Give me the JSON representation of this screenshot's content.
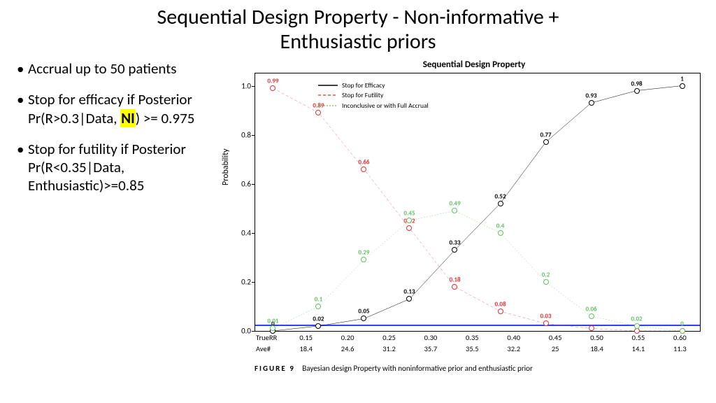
{
  "title_line1": "Sequential Design Property - Non-informative +",
  "title_line2": "Enthusiastic priors",
  "bullets": {
    "b1": "Accrual up to 50 patients",
    "b2a": "Stop for efficacy if Posterior Pr(R>0.3|Data, ",
    "b2_hl": "NI",
    "b2b": ") >= 0.975",
    "b3": "Stop for futility if Posterior Pr(R<0.35|Data, Enthusiastic)>=0.85"
  },
  "chart": {
    "title": "Sequential Design Property",
    "ylabel": "Probability",
    "ylim": [
      0,
      1.05
    ],
    "yticks": [
      0.0,
      0.2,
      0.4,
      0.6,
      0.8,
      1.0
    ],
    "ytick_labels": [
      "0.0",
      "0.2",
      "0.4",
      "0.6",
      "0.8",
      "1.0"
    ],
    "x_categories": [
      "0.15",
      "0.20",
      "0.25",
      "0.30",
      "0.35",
      "0.40",
      "0.45",
      "0.50",
      "0.55",
      "0.60"
    ],
    "x_ave": [
      "18.4",
      "24.6",
      "31.2",
      "35.7",
      "35.5",
      "32.2",
      "25",
      "18.4",
      "14.1",
      "11.3"
    ],
    "xrow1_label": "TrueRR",
    "xrow2_label": "Ave#",
    "hline_y": 0.025,
    "hline_color": "#3040ff",
    "series": {
      "efficacy": {
        "label": "Stop for Efficacy",
        "color": "#000000",
        "dash": "",
        "values": [
          0.0,
          0.02,
          0.05,
          0.13,
          0.33,
          0.52,
          0.77,
          0.93,
          0.98,
          1.0
        ],
        "labels": [
          "0",
          "0.02",
          "0.05",
          "0.13",
          "0.33",
          "0.52",
          "0.77",
          "0.93",
          "0.98",
          "1"
        ]
      },
      "futility": {
        "label": "Stop for Futility",
        "color": "#e03030",
        "dash": "4 3",
        "values": [
          0.99,
          0.89,
          0.66,
          0.42,
          0.18,
          0.08,
          0.03,
          0.01,
          0.0,
          0.0
        ],
        "labels": [
          "0.99",
          "0.89",
          "0.66",
          "0.42",
          "0.18",
          "0.08",
          "0.03",
          "",
          "",
          ""
        ]
      },
      "inconclusive": {
        "label": "Inconclusive or with Full Accrual",
        "color": "#60c060",
        "dash": "2 2",
        "values": [
          0.01,
          0.1,
          0.29,
          0.45,
          0.49,
          0.4,
          0.2,
          0.06,
          0.02,
          0.0
        ],
        "labels": [
          "0.01",
          "0.1",
          "0.29",
          "0.45",
          "0.49",
          "0.4",
          "0.2",
          "0.06",
          "0.02",
          "0"
        ]
      }
    },
    "caption_label": "FIGURE 9",
    "caption_text": "Bayesian design Property with noninformative prior and enthusiastic prior",
    "colors": {
      "border": "#000000",
      "background": "#ffffff"
    }
  }
}
